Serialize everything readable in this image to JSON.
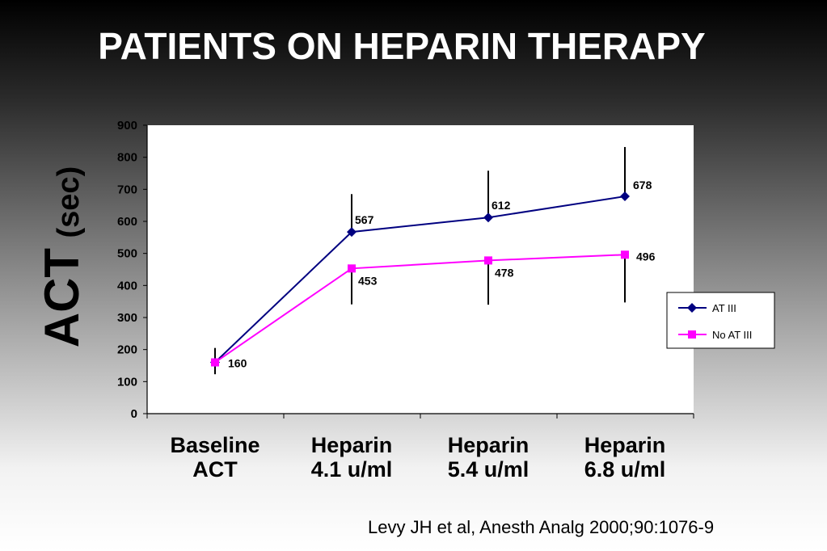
{
  "slide": {
    "title": "PATIENTS ON HEPARIN THERAPY",
    "citation": "Levy JH et al, Anesth Analg 2000;90:1076-9"
  },
  "chart_data": {
    "type": "line",
    "ylabel_main": "ACT",
    "ylabel_unit": "(sec)",
    "categories": [
      "Baseline\nACT",
      "Heparin\n4.1 u/ml",
      "Heparin\n5.4 u/ml",
      "Heparin\n6.8 u/ml"
    ],
    "ylim": [
      0,
      900
    ],
    "yticks": [
      0,
      100,
      200,
      300,
      400,
      500,
      600,
      700,
      800,
      900
    ],
    "series": [
      {
        "name": "AT III",
        "color": "#000080",
        "marker": "diamond",
        "values": [
          160,
          567,
          612,
          678
        ],
        "error_high": [
          205,
          685,
          758,
          832
        ],
        "data_labels": [
          "",
          "567",
          "612",
          "678"
        ]
      },
      {
        "name": "No AT III",
        "color": "#ff00ff",
        "marker": "square",
        "values": [
          160,
          453,
          478,
          496
        ],
        "error_low": [
          123,
          341,
          340,
          347
        ],
        "data_labels": [
          "160",
          "453",
          "478",
          "496"
        ]
      }
    ],
    "legend_position": "right"
  }
}
